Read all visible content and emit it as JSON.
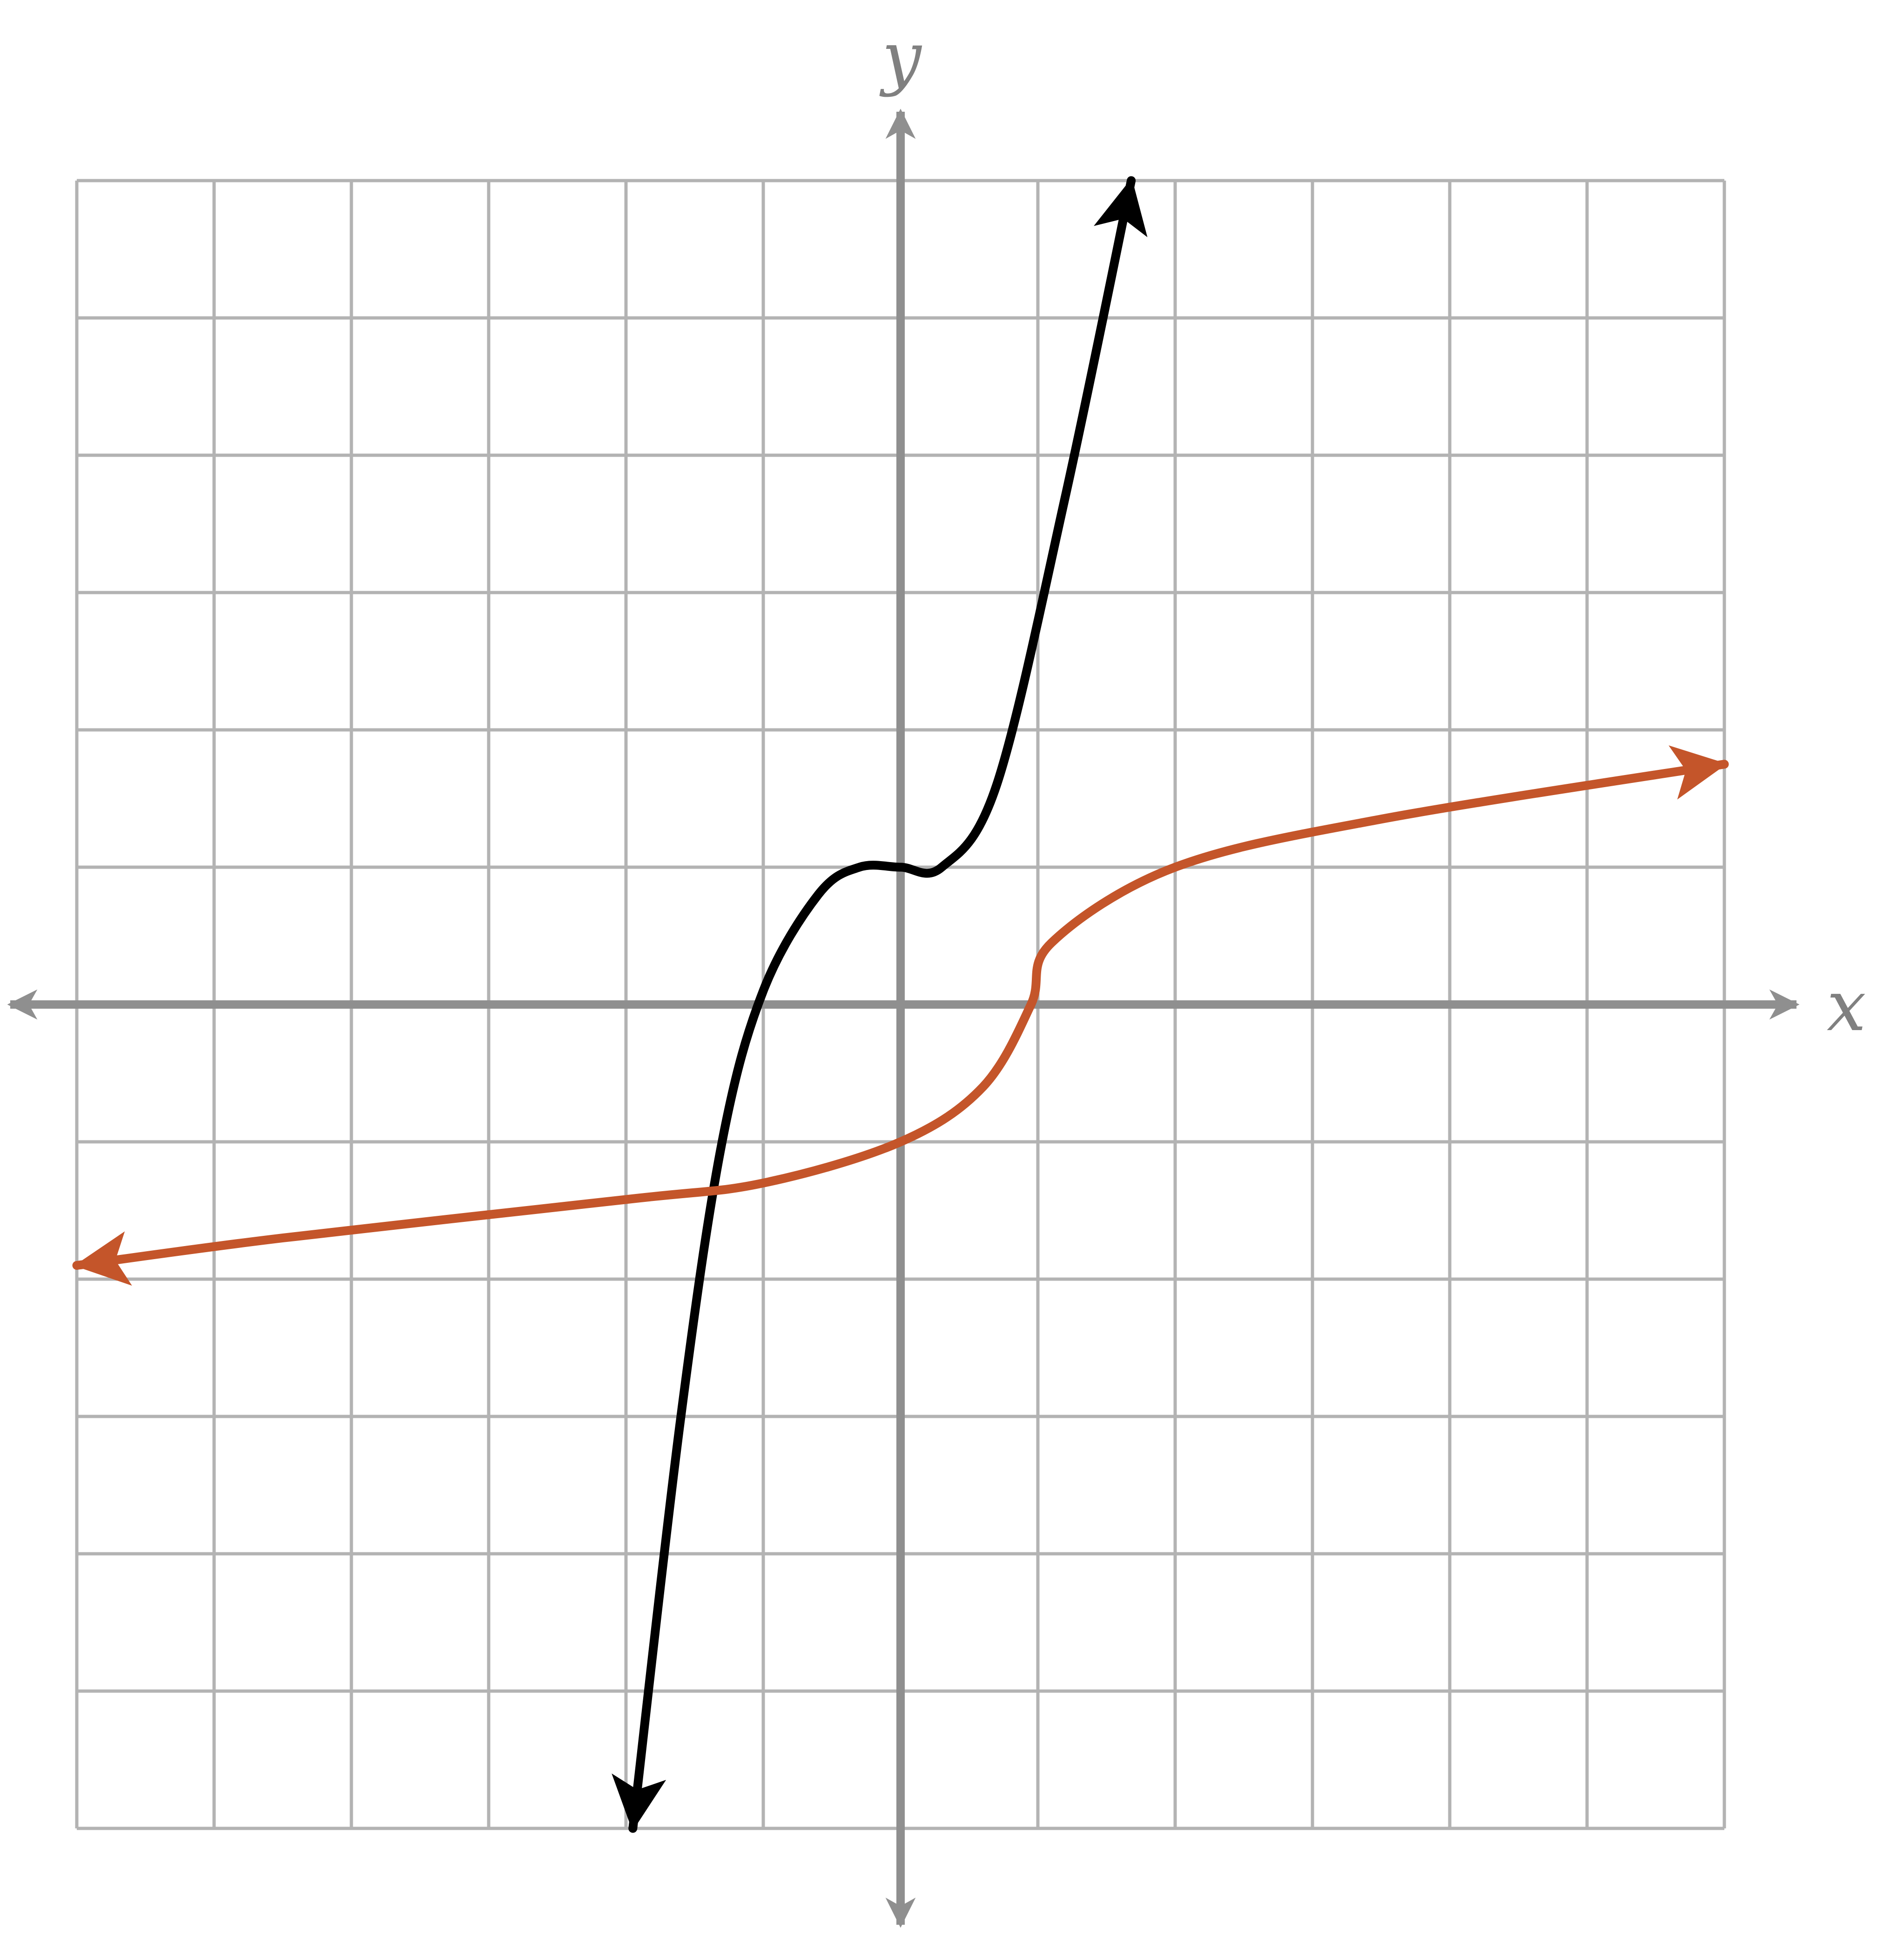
{
  "chart_data": {
    "type": "line",
    "title": "",
    "xlabel": "x",
    "ylabel": "y",
    "xlim": [
      -6,
      6
    ],
    "ylim": [
      -6,
      6
    ],
    "grid": true,
    "axis_color": "#8f8f8f",
    "grid_color": "#b3b3b3",
    "series": [
      {
        "color": "#000000",
        "arrow_start": true,
        "arrow_end": true,
        "points": [
          [
            -1.95,
            -6.0
          ],
          [
            -1.6,
            -3.0
          ],
          [
            -1.3,
            -1.0
          ],
          [
            -1.0,
            0.1
          ],
          [
            -0.6,
            0.8
          ],
          [
            -0.3,
            1.0
          ],
          [
            0.0,
            1.0
          ],
          [
            0.3,
            1.0
          ],
          [
            0.7,
            1.6
          ],
          [
            1.2,
            3.7
          ],
          [
            1.68,
            6.0
          ]
        ]
      },
      {
        "color": "#c4552a",
        "arrow_start": true,
        "arrow_end": true,
        "points": [
          [
            -6.0,
            -1.9
          ],
          [
            -4.5,
            -1.7
          ],
          [
            -2.0,
            -1.42
          ],
          [
            -1.0,
            -1.3
          ],
          [
            0.0,
            -1.0
          ],
          [
            0.6,
            -0.6
          ],
          [
            0.95,
            0.0
          ],
          [
            1.1,
            0.45
          ],
          [
            2.0,
            1.0
          ],
          [
            3.5,
            1.35
          ],
          [
            6.0,
            1.75
          ]
        ]
      }
    ]
  }
}
